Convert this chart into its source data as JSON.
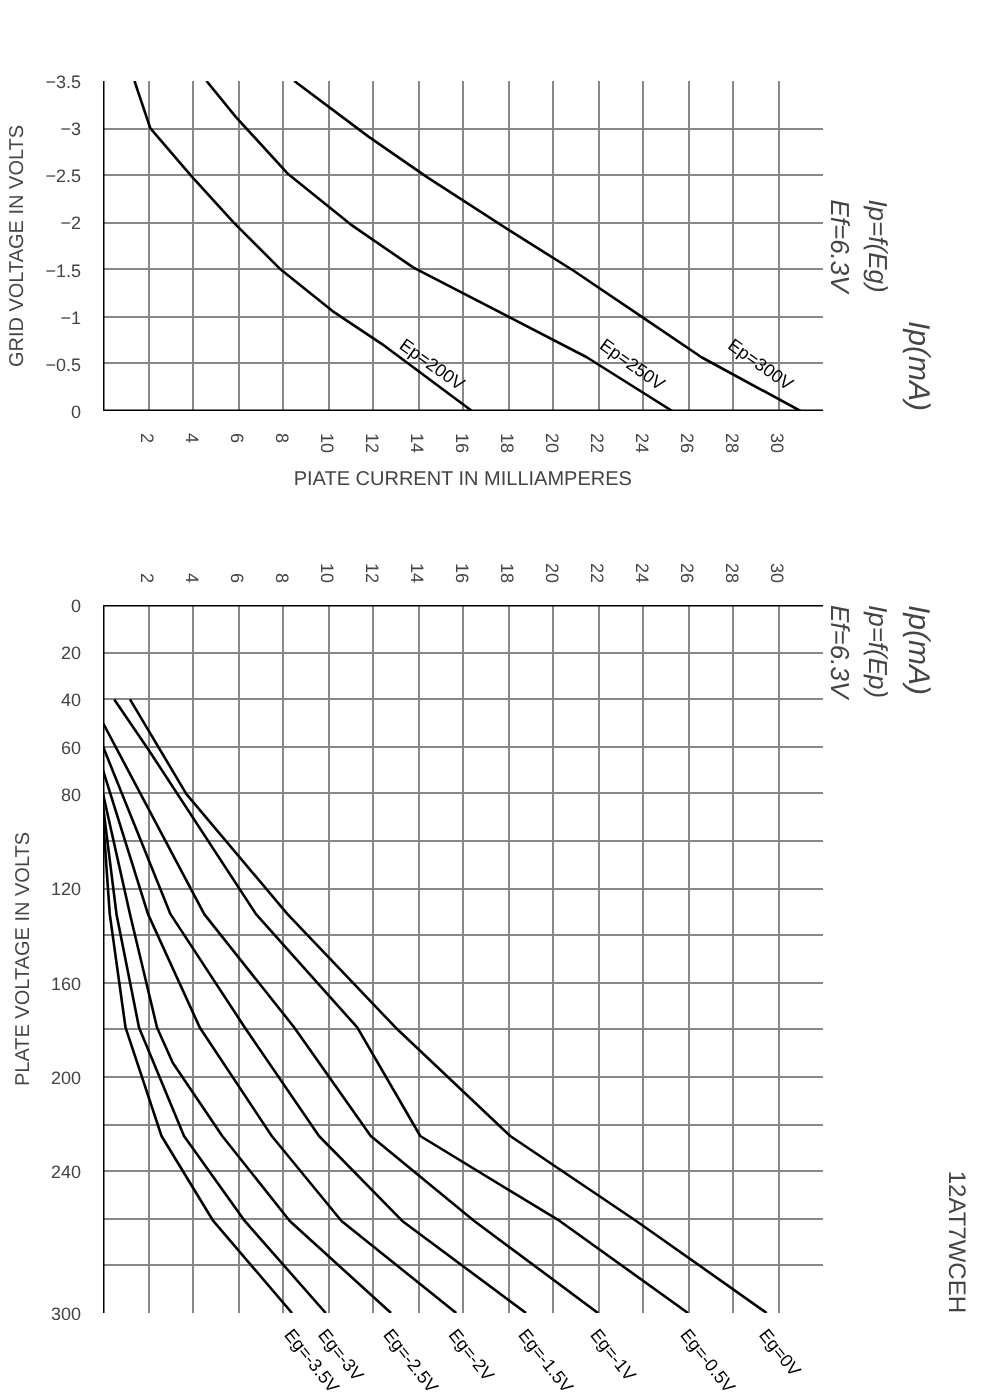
{
  "chart_data": [
    {
      "type": "line",
      "xlabel": "PIATE CURRENT IN MILLIAMPERES",
      "ylabel": "GRID VOLTAGE IN VOLTS",
      "annotations": [
        "Ip=f(Eg)",
        "Ef=6.3V",
        "Ip(mA)"
      ],
      "xlim": [
        0,
        32
      ],
      "xticks": [
        2,
        4,
        6,
        8,
        10,
        12,
        14,
        16,
        18,
        20,
        22,
        24,
        26,
        28,
        30
      ],
      "ylim": [
        0,
        -3.5
      ],
      "yticks": [
        -3.5,
        -3.0,
        -2.5,
        -2.0,
        -1.5,
        -1.0,
        -0.5,
        0
      ],
      "grid": true,
      "legend": false,
      "series": [
        {
          "name": "Ep=200V",
          "color": "#000000",
          "x": [
            1.4,
            2.1,
            3.9,
            5.8,
            7.9,
            10.2,
            12.4,
            16.4
          ],
          "values": [
            -3.5,
            -3.0,
            -2.5,
            -2.0,
            -1.5,
            -1.06,
            -0.71,
            0
          ]
        },
        {
          "name": "Ep=250V",
          "color": "#000000",
          "x": [
            4.6,
            5.9,
            8.2,
            11.0,
            13.8,
            18.1,
            21.5,
            25.3
          ],
          "values": [
            -3.5,
            -3.12,
            -2.52,
            -1.98,
            -1.52,
            -0.99,
            -0.57,
            0
          ]
        },
        {
          "name": "Ep=300V",
          "color": "#000000",
          "x": [
            8.5,
            11.8,
            14.4,
            18.1,
            20.9,
            24.0,
            26.6,
            31.0
          ],
          "values": [
            -3.5,
            -2.91,
            -2.48,
            -1.91,
            -1.49,
            -0.99,
            -0.57,
            0
          ]
        }
      ]
    },
    {
      "type": "line",
      "ylabel": "PLATE VOLTAGE IN VOLTS",
      "annotations": [
        "Ip=f(Ep)",
        "Ef=6.3V",
        "Ip(mA)",
        "12AT7WCEH"
      ],
      "xlim": [
        0,
        32
      ],
      "xticks": [
        2,
        4,
        6,
        8,
        10,
        12,
        14,
        16,
        18,
        20,
        22,
        24,
        26,
        28,
        30
      ],
      "ylim": [
        300,
        0
      ],
      "yticks": [
        0,
        20,
        40,
        60,
        80,
        {
          "value": 100,
          "label": null
        },
        120,
        {
          "value": 140,
          "label": null
        },
        160,
        {
          "value": 180,
          "label": null
        },
        200,
        {
          "value": 220,
          "label": null
        },
        240,
        {
          "value": 260,
          "label": null
        },
        {
          "value": 280,
          "label": null
        },
        300
      ],
      "grid": true,
      "legend": false,
      "series": [
        {
          "name": "Eg=0V",
          "color": "#000000",
          "x": [
            1.2,
            3.7,
            8.2,
            13.0,
            18.1,
            23.7,
            29.5
          ],
          "values": [
            40,
            80,
            131,
            179,
            225,
            261,
            300
          ]
        },
        {
          "name": "Eg=-0.5V",
          "color": "#000000",
          "x": [
            0.5,
            2.0,
            6.8,
            11.3,
            14.1,
            20.3,
            26.0
          ],
          "values": [
            40,
            61,
            131,
            179,
            225,
            261,
            300
          ]
        },
        {
          "name": "Eg=-1V",
          "color": "#000000",
          "x": [
            0,
            4.5,
            8.5,
            11.9,
            16.5,
            22.0
          ],
          "values": [
            50,
            131,
            179,
            225,
            261,
            300
          ]
        },
        {
          "name": "Eg=-1.5V",
          "color": "#000000",
          "x": [
            0,
            3.0,
            6.3,
            9.6,
            13.3,
            18.8
          ],
          "values": [
            60,
            131,
            179,
            225,
            261,
            300
          ]
        },
        {
          "name": "Eg=-2V",
          "color": "#000000",
          "x": [
            0,
            2.0,
            4.3,
            7.5,
            10.6,
            15.7
          ],
          "values": [
            70,
            131,
            179,
            225,
            261,
            300
          ]
        },
        {
          "name": "Eg=-2.5V",
          "color": "#000000",
          "x": [
            0,
            1.2,
            2.4,
            3.1,
            5.3,
            8.3,
            12.8
          ],
          "values": [
            80,
            131,
            179,
            194,
            225,
            261,
            300
          ]
        },
        {
          "name": "Eg=-3V",
          "color": "#000000",
          "x": [
            0,
            0.6,
            1.6,
            3.6,
            6.3,
            9.9
          ],
          "values": [
            85,
            131,
            179,
            225,
            261,
            300
          ]
        },
        {
          "name": "Eg=-3.5V",
          "color": "#000000",
          "x": [
            0,
            0.3,
            1.0,
            2.6,
            4.9,
            8.4
          ],
          "values": [
            90,
            131,
            179,
            225,
            261,
            300
          ]
        }
      ]
    }
  ]
}
